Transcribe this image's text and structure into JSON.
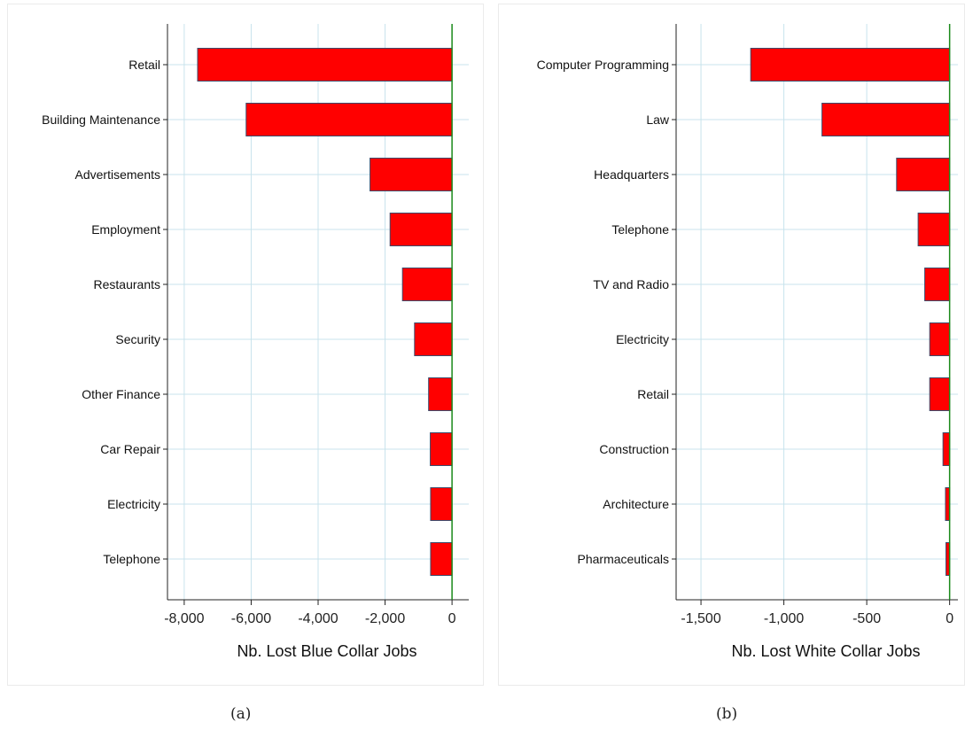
{
  "chart_data": [
    {
      "type": "bar",
      "orientation": "horizontal",
      "categories": [
        "Retail",
        "Building Maintenance",
        "Advertisements",
        "Employment",
        "Restaurants",
        "Security",
        "Other Finance",
        "Car Repair",
        "Electricity",
        "Telephone"
      ],
      "values": [
        -7600,
        -6150,
        -2450,
        -1850,
        -1480,
        -1120,
        -700,
        -650,
        -640,
        -640
      ],
      "xlabel": "Nb. Lost Blue Collar Jobs",
      "xlim": [
        -8500,
        500
      ],
      "xticks": [
        -8000,
        -6000,
        -4000,
        -2000,
        0
      ],
      "xtick_labels": [
        "-8,000",
        "-6,000",
        "-4,000",
        "-2,000",
        "0"
      ],
      "grid": true,
      "caption": "(a)"
    },
    {
      "type": "bar",
      "orientation": "horizontal",
      "categories": [
        "Computer Programming",
        "Law",
        "Headquarters",
        "Telephone",
        "TV and Radio",
        "Electricity",
        "Retail",
        "Construction",
        "Architecture",
        "Pharmaceuticals"
      ],
      "values": [
        -1200,
        -770,
        -320,
        -190,
        -150,
        -120,
        -120,
        -40,
        -25,
        -22
      ],
      "xlabel": "Nb. Lost White Collar Jobs",
      "xlim": [
        -1650,
        50
      ],
      "xticks": [
        -1500,
        -1000,
        -500,
        0
      ],
      "xtick_labels": [
        "-1,500",
        "-1,000",
        "-500",
        "0"
      ],
      "grid": true,
      "caption": "(b)"
    }
  ],
  "colors": {
    "bar_fill": "#ff0000",
    "bar_stroke": "#3d4b6b",
    "zero_line": "#1a8a1a",
    "grid": "#c8e3ec",
    "axis": "#222222"
  }
}
